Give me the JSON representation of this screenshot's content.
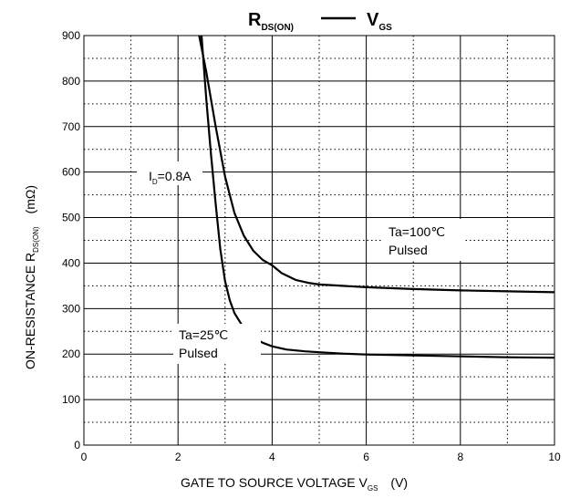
{
  "chart_data": {
    "type": "line",
    "title": {
      "left_main": "R",
      "left_sub": "DS(ON)",
      "right_main": "V",
      "right_sub": "GS"
    },
    "xlabel": {
      "main": "GATE TO SOURCE VOLTAGE   V",
      "sub": "GS",
      "unit": "(V)"
    },
    "ylabel": {
      "main": "ON-RESISTANCE   R",
      "sub": "DS(ON)",
      "unit": "(mΩ)"
    },
    "xlim": [
      0,
      10
    ],
    "ylim": [
      0,
      900
    ],
    "x_ticks": [
      0,
      2,
      4,
      6,
      8,
      10
    ],
    "y_ticks": [
      0,
      100,
      200,
      300,
      400,
      500,
      600,
      700,
      800,
      900
    ],
    "x_minor_grid": [
      1,
      3,
      5,
      7,
      9
    ],
    "y_minor_grid": [
      50,
      150,
      250,
      350,
      450,
      550,
      650,
      750,
      850
    ],
    "grid": true,
    "series": [
      {
        "x": [
          2.5,
          2.6,
          2.7,
          2.8,
          2.9,
          3.0,
          3.1,
          3.2,
          3.4,
          3.6,
          3.8,
          4.0,
          4.3,
          4.7,
          5.0,
          5.5,
          6.0,
          7.0,
          8.0,
          9.0,
          10.0
        ],
        "y": [
          900,
          760,
          640,
          530,
          430,
          360,
          318,
          290,
          257,
          237,
          225,
          217,
          210,
          206,
          204,
          201,
          199,
          197,
          195,
          193,
          192
        ]
      },
      {
        "x": [
          2.45,
          2.6,
          2.8,
          3.0,
          3.2,
          3.4,
          3.6,
          3.8,
          4.0,
          4.2,
          4.5,
          4.8,
          5.0,
          5.5,
          6.0,
          7.0,
          8.0,
          9.0,
          10.0
        ],
        "y": [
          900,
          820,
          700,
          590,
          510,
          460,
          427,
          407,
          395,
          378,
          363,
          356,
          353,
          350,
          347,
          343,
          340,
          338,
          336
        ]
      }
    ],
    "annotations": [
      {
        "main": "I",
        "sub": "D",
        "rest": "=0.8A"
      },
      {
        "line1": "Ta=100℃",
        "line2": "Pulsed"
      },
      {
        "line1": "Ta=25℃",
        "line2": "Pulsed"
      }
    ]
  }
}
